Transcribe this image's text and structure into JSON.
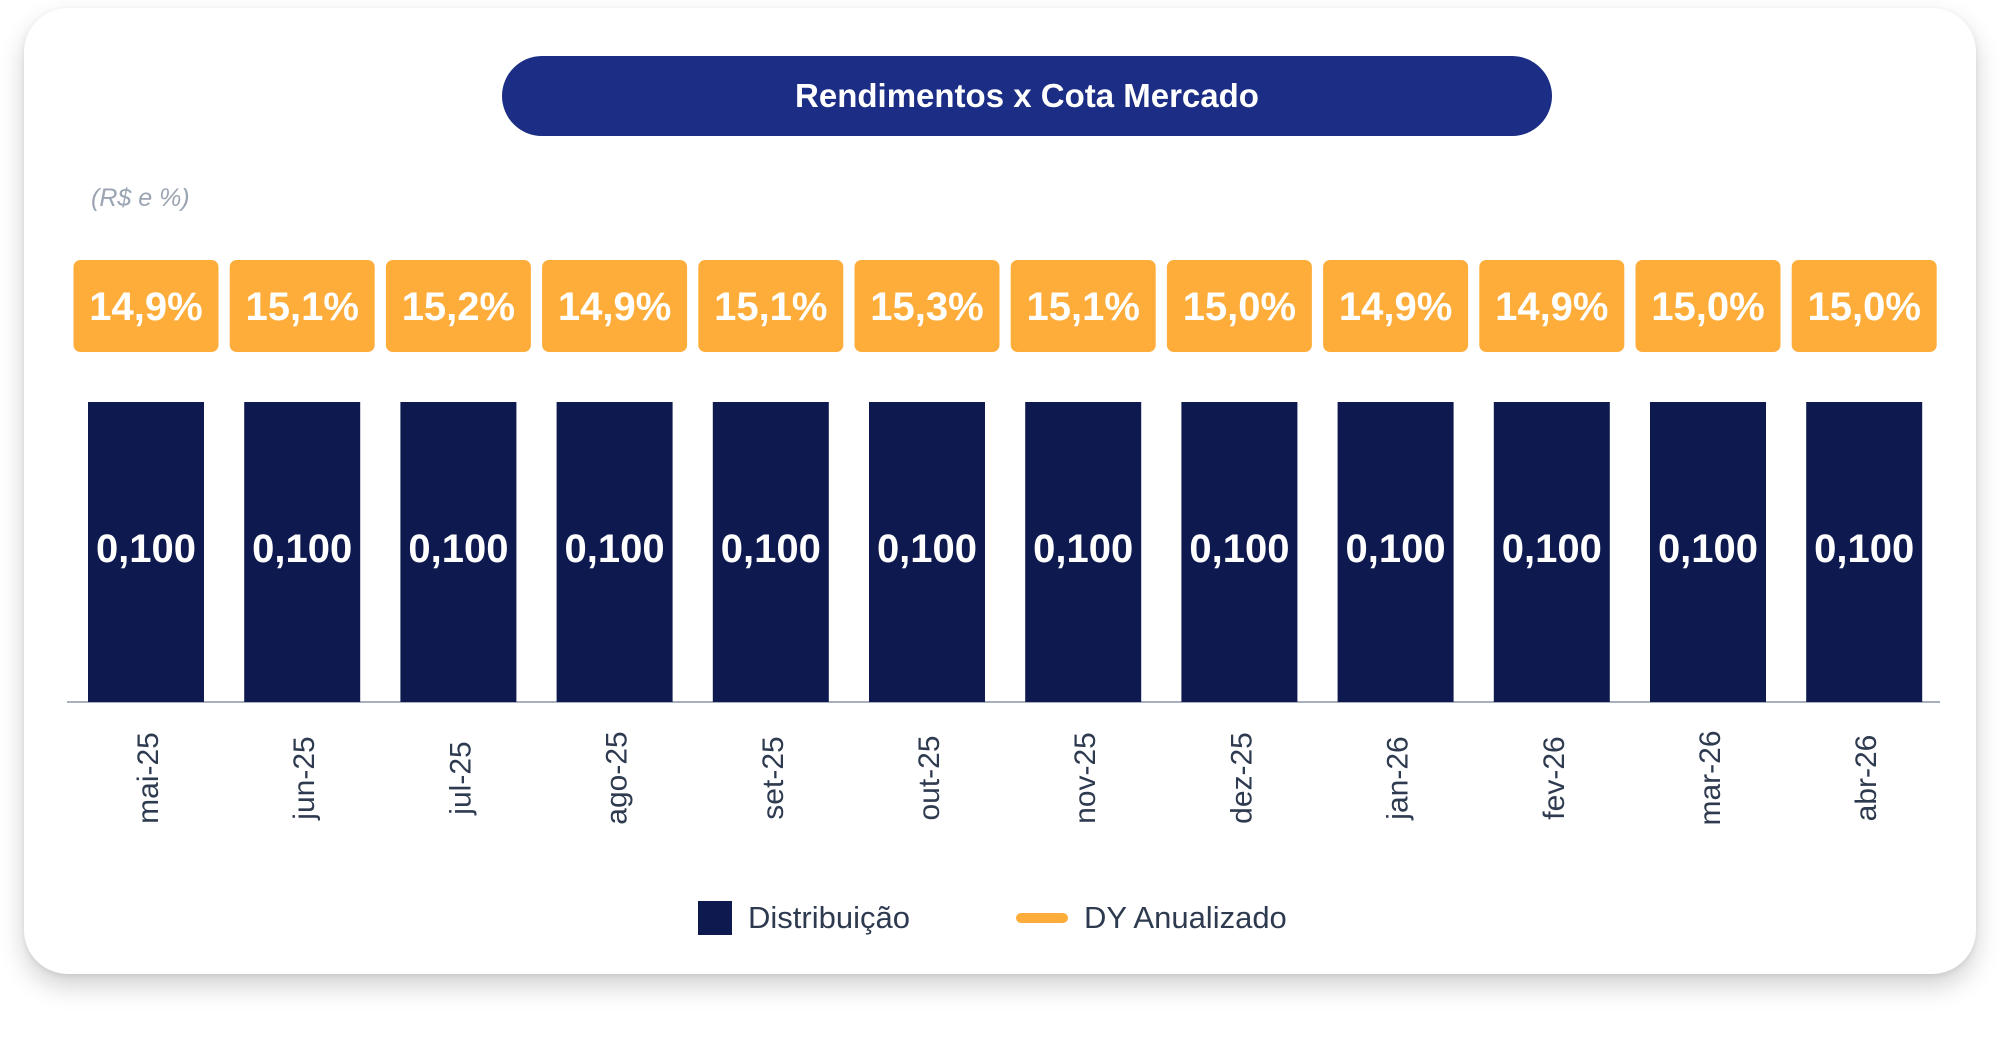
{
  "title": "Rendimentos x Cota Mercado",
  "unit_label": "(R$ e %)",
  "colors": {
    "bar": "#0e1a4f",
    "dy_box": "#ffad3a",
    "title_bg": "#1b2d84",
    "axis": "#a8b0bb"
  },
  "chart_data": {
    "type": "bar",
    "categories": [
      "mai-25",
      "jun-25",
      "jul-25",
      "ago-25",
      "set-25",
      "out-25",
      "nov-25",
      "dez-25",
      "jan-26",
      "fev-26",
      "mar-26",
      "abr-26"
    ],
    "series": [
      {
        "name": "Distribuição",
        "values": [
          0.1,
          0.1,
          0.1,
          0.1,
          0.1,
          0.1,
          0.1,
          0.1,
          0.1,
          0.1,
          0.1,
          0.1
        ],
        "labels": [
          "0,100",
          "0,100",
          "0,100",
          "0,100",
          "0,100",
          "0,100",
          "0,100",
          "0,100",
          "0,100",
          "0,100",
          "0,100",
          "0,100"
        ]
      },
      {
        "name": "DY Anualizado",
        "values": [
          14.9,
          15.1,
          15.2,
          14.9,
          15.1,
          15.3,
          15.1,
          15.0,
          14.9,
          14.9,
          15.0,
          15.0
        ],
        "labels": [
          "14,9%",
          "15,1%",
          "15,2%",
          "14,9%",
          "15,1%",
          "15,3%",
          "15,1%",
          "15,0%",
          "14,9%",
          "14,9%",
          "15,0%",
          "15,0%"
        ]
      }
    ],
    "ylim": [
      0,
      0.1
    ],
    "grid": false,
    "legend_position": "bottom"
  },
  "legend": {
    "bar_label": "Distribuição",
    "line_label": "DY Anualizado"
  }
}
